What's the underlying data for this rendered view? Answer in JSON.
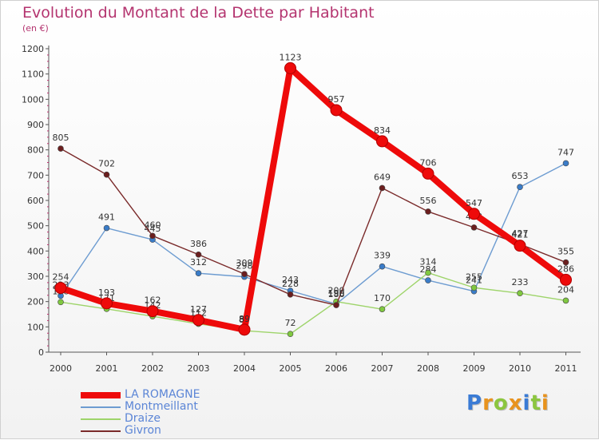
{
  "title": "Evolution du Montant de la Dette par Habitant",
  "subtitle": "(en €)",
  "brand": {
    "text": "Proxiti",
    "letter_colors": [
      "#3a7bd5",
      "#e8931e",
      "#8cc63f",
      "#e8931e",
      "#3a7bd5",
      "#8cc63f",
      "#e8931e"
    ]
  },
  "chart_data": {
    "type": "line",
    "categories": [
      "2000",
      "2001",
      "2002",
      "2003",
      "2004",
      "2005",
      "2006",
      "2007",
      "2008",
      "2009",
      "2010",
      "2011"
    ],
    "ylim": [
      0,
      1200
    ],
    "yticks": [
      "0",
      "100",
      "200",
      "300",
      "400",
      "500",
      "600",
      "700",
      "800",
      "900",
      "1000",
      "1100",
      "1200"
    ],
    "grid": false,
    "legend_position": "bottom-left",
    "series": [
      {
        "name": "Montmeillant",
        "color": "#6d9cd1",
        "point_color": "#3a7cc8",
        "values": [
          223,
          491,
          445,
          312,
          298,
          243,
          190,
          339,
          284,
          241,
          653,
          747
        ]
      },
      {
        "name": "Draize",
        "color": "#9ed46a",
        "point_color": "#80c840",
        "values": [
          198,
          171,
          142,
          112,
          85,
          72,
          200,
          170,
          314,
          255,
          233,
          204
        ]
      },
      {
        "name": "Givron",
        "color": "#7a2a2a",
        "point_color": "#6b1e1e",
        "values": [
          805,
          702,
          460,
          386,
          309,
          228,
          186,
          649,
          556,
          493,
          427,
          355
        ]
      },
      {
        "name": "LA ROMAGNE",
        "color": "#ee0a0a",
        "point_color": "#ee0a0a",
        "values": [
          254,
          193,
          162,
          127,
          89,
          1123,
          957,
          834,
          706,
          547,
          421,
          286
        ]
      }
    ]
  }
}
